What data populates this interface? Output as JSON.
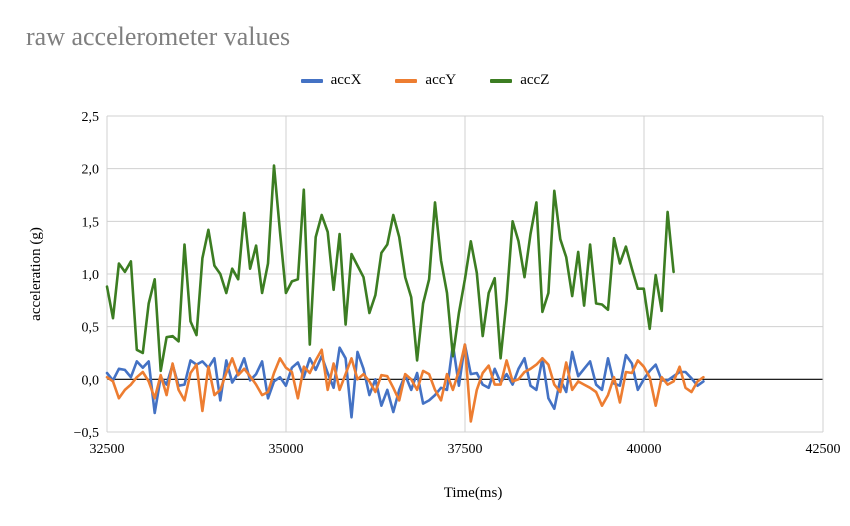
{
  "chart_data": {
    "type": "line",
    "title": "raw accelerometer values",
    "xlabel": "Time(ms)",
    "ylabel": "acceleration (g)",
    "xlim": [
      32500,
      42500
    ],
    "ylim": [
      -0.5,
      2.5
    ],
    "x_ticks": [
      32500,
      35000,
      37500,
      40000,
      42500
    ],
    "y_ticks": [
      "2,5",
      "2,0",
      "1,5",
      "1,0",
      "0,5",
      "0,0",
      "−0,5"
    ],
    "y_tick_values": [
      2.5,
      2.0,
      1.5,
      1.0,
      0.5,
      0.0,
      -0.5
    ],
    "grid": true,
    "legend_position": "top",
    "x_start": 32500,
    "x_step": 83.3,
    "series": [
      {
        "name": "accX",
        "color": "#4472c4",
        "values": [
          0.06,
          -0.01,
          0.1,
          0.09,
          0.02,
          0.17,
          0.11,
          0.17,
          -0.32,
          0.02,
          -0.05,
          0.14,
          -0.06,
          -0.05,
          0.18,
          0.14,
          0.17,
          0.11,
          0.2,
          -0.2,
          0.18,
          -0.03,
          0.06,
          0.2,
          -0.01,
          0.05,
          0.17,
          -0.18,
          -0.02,
          0.02,
          -0.06,
          0.11,
          0.16,
          0.02,
          0.2,
          0.09,
          0.22,
          0.06,
          -0.08,
          0.3,
          0.2,
          -0.36,
          0.26,
          0.1,
          -0.15,
          0.0,
          -0.25,
          -0.1,
          -0.31,
          -0.1,
          0.04,
          -0.1,
          0.06,
          -0.23,
          -0.2,
          -0.15,
          -0.08,
          -0.1,
          0.33,
          -0.06,
          0.33,
          0.05,
          0.06,
          -0.05,
          -0.08,
          0.1,
          -0.03,
          0.05,
          -0.05,
          0.1,
          0.2,
          -0.06,
          -0.1,
          0.2,
          -0.18,
          -0.28,
          0.0,
          -0.12,
          0.26,
          0.03,
          0.1,
          0.17,
          -0.05,
          -0.1,
          0.2,
          -0.04,
          -0.06,
          0.23,
          0.15,
          -0.1,
          0.0,
          0.08,
          0.14,
          -0.01,
          -0.01,
          0.03,
          0.07,
          0.07,
          0.01,
          -0.06,
          -0.02
        ]
      },
      {
        "name": "accY",
        "color": "#ed7d31",
        "values": [
          0.02,
          -0.02,
          -0.18,
          -0.1,
          -0.05,
          0.02,
          0.07,
          -0.02,
          -0.18,
          0.04,
          -0.15,
          0.15,
          -0.1,
          -0.2,
          0.06,
          0.14,
          -0.3,
          0.12,
          -0.15,
          -0.1,
          0.06,
          0.2,
          0.04,
          0.1,
          0.03,
          -0.05,
          -0.15,
          -0.12,
          0.06,
          0.2,
          0.11,
          0.07,
          -0.18,
          0.12,
          0.06,
          0.18,
          0.28,
          -0.1,
          0.15,
          -0.1,
          0.05,
          0.2,
          0.0,
          0.05,
          -0.02,
          -0.12,
          0.04,
          0.03,
          -0.08,
          -0.2,
          0.05,
          0.0,
          -0.1,
          0.08,
          0.05,
          -0.1,
          -0.2,
          0.05,
          -0.1,
          0.08,
          0.33,
          -0.4,
          -0.1,
          0.06,
          0.13,
          -0.05,
          -0.05,
          0.18,
          -0.02,
          0.0,
          0.07,
          0.1,
          0.14,
          0.2,
          0.14,
          -0.05,
          -0.12,
          0.16,
          -0.1,
          -0.02,
          -0.05,
          -0.08,
          -0.12,
          -0.25,
          -0.15,
          0.02,
          -0.22,
          0.07,
          0.06,
          0.18,
          0.12,
          0.02,
          -0.25,
          0.02,
          -0.05,
          -0.02,
          0.12,
          -0.08,
          -0.12,
          -0.02,
          0.02
        ]
      },
      {
        "name": "accZ",
        "color": "#3c7d22",
        "values": [
          0.88,
          0.58,
          1.1,
          1.02,
          1.12,
          0.28,
          0.25,
          0.72,
          0.95,
          0.08,
          0.4,
          0.41,
          0.36,
          1.28,
          0.55,
          0.42,
          1.15,
          1.42,
          1.08,
          1.0,
          0.82,
          1.05,
          0.95,
          1.58,
          1.05,
          1.27,
          0.82,
          1.1,
          2.03,
          1.4,
          0.82,
          0.93,
          0.95,
          1.8,
          0.33,
          1.35,
          1.56,
          1.4,
          0.85,
          1.38,
          0.52,
          1.19,
          1.08,
          0.97,
          0.63,
          0.8,
          1.2,
          1.28,
          1.56,
          1.35,
          0.97,
          0.78,
          0.18,
          0.72,
          0.95,
          1.68,
          1.13,
          0.82,
          0.22,
          0.63,
          0.95,
          1.31,
          1.01,
          0.41,
          0.82,
          0.96,
          0.2,
          0.75,
          1.5,
          1.31,
          0.97,
          1.38,
          1.68,
          0.64,
          0.82,
          1.79,
          1.33,
          1.16,
          0.79,
          1.21,
          0.7,
          1.28,
          0.72,
          0.71,
          0.66,
          1.34,
          1.1,
          1.26,
          1.05,
          0.86,
          0.86,
          0.48,
          0.99,
          0.65,
          1.59,
          1.02
        ]
      }
    ]
  }
}
